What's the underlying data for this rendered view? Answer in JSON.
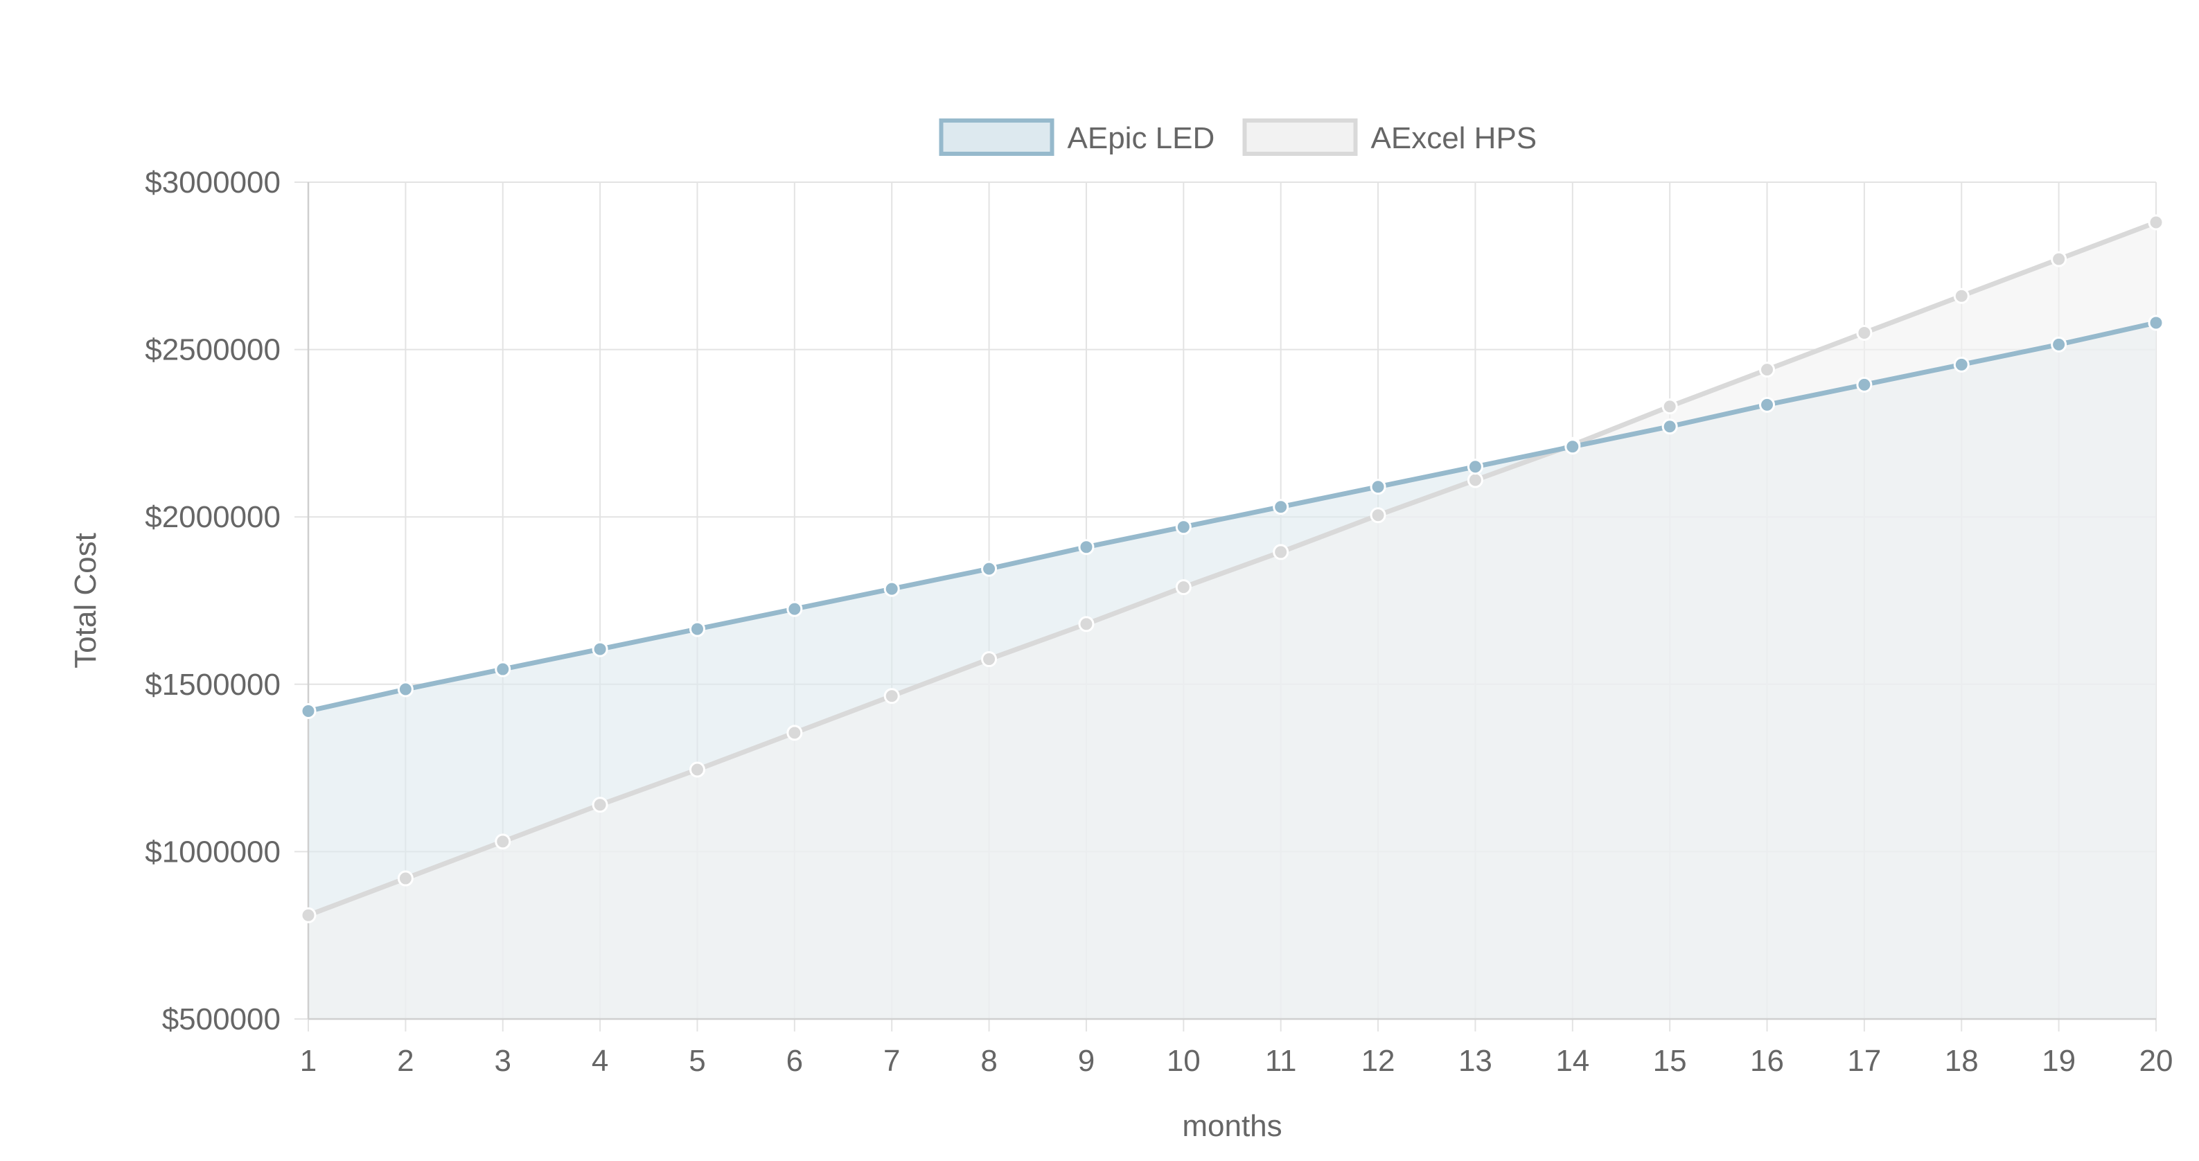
{
  "chart_data": {
    "type": "line",
    "area_fill": true,
    "xlabel": "months",
    "ylabel": "Total Cost",
    "x": [
      1,
      2,
      3,
      4,
      5,
      6,
      7,
      8,
      9,
      10,
      11,
      12,
      13,
      14,
      15,
      16,
      17,
      18,
      19,
      20
    ],
    "ylim": [
      500000,
      3000000
    ],
    "y_ticks": [
      500000,
      1000000,
      1500000,
      2000000,
      2500000,
      3000000
    ],
    "y_tick_labels": [
      "$500000",
      "$1000000",
      "$1500000",
      "$2000000",
      "$2500000",
      "$3000000"
    ],
    "grid": true,
    "legend_position": "top-center",
    "series": [
      {
        "name": "AEpic LED",
        "color": "#96b9cc",
        "fill_color": "#dde9ef",
        "values": [
          1420000,
          1485000,
          1545000,
          1605000,
          1665000,
          1725000,
          1785000,
          1845000,
          1910000,
          1970000,
          2030000,
          2090000,
          2150000,
          2210000,
          2270000,
          2335000,
          2395000,
          2455000,
          2515000,
          2580000
        ]
      },
      {
        "name": "AExcel HPS",
        "color": "#d9d9d9",
        "fill_color": "#f2f2f2",
        "values": [
          810000,
          920000,
          1030000,
          1140000,
          1245000,
          1355000,
          1465000,
          1575000,
          1680000,
          1790000,
          1895000,
          2005000,
          2110000,
          2215000,
          2330000,
          2440000,
          2550000,
          2660000,
          2770000,
          2880000
        ]
      }
    ]
  }
}
